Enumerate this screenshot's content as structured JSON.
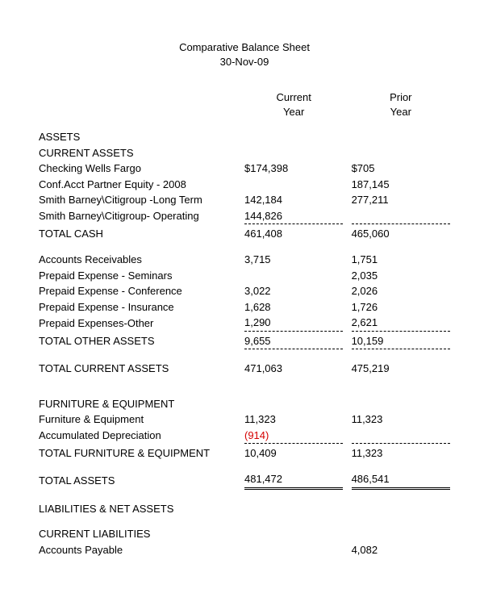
{
  "title": "Comparative Balance Sheet",
  "date": "30-Nov-09",
  "headers": {
    "current": "Current\nYear",
    "prior": "Prior\nYear"
  },
  "sections": {
    "assets": "ASSETS",
    "current_assets": "CURRENT ASSETS",
    "furn_equip": "FURNITURE & EQUIPMENT",
    "liab_net": "LIABILITIES & NET ASSETS",
    "curr_liab": "CURRENT LIABILITIES"
  },
  "rows": {
    "checking": {
      "label": "Checking Wells Fargo",
      "cur": "$174,398",
      "pri": "$705"
    },
    "conf_acct": {
      "label": "Conf.Acct Partner Equity - 2008",
      "cur": "",
      "pri": "187,145"
    },
    "sb_long": {
      "label": "Smith Barney\\Citigroup -Long Term",
      "cur": "142,184",
      "pri": "277,211"
    },
    "sb_oper": {
      "label": "Smith Barney\\Citigroup- Operating",
      "cur": "144,826",
      "pri": ""
    },
    "total_cash": {
      "label": "TOTAL CASH",
      "cur": "461,408",
      "pri": "465,060"
    },
    "ar": {
      "label": "Accounts Receivables",
      "cur": "3,715",
      "pri": "1,751"
    },
    "pp_sem": {
      "label": "Prepaid Expense - Seminars",
      "cur": "",
      "pri": "2,035"
    },
    "pp_conf": {
      "label": "Prepaid Expense - Conference",
      "cur": "3,022",
      "pri": "2,026"
    },
    "pp_ins": {
      "label": "Prepaid Expense - Insurance",
      "cur": "1,628",
      "pri": "1,726"
    },
    "pp_oth": {
      "label": "Prepaid Expenses-Other",
      "cur": "1,290",
      "pri": "2,621"
    },
    "tot_oth": {
      "label": "TOTAL OTHER ASSETS",
      "cur": "9,655",
      "pri": "10,159"
    },
    "tot_cur": {
      "label": "TOTAL CURRENT ASSETS",
      "cur": "471,063",
      "pri": "475,219"
    },
    "fe": {
      "label": "Furniture & Equipment",
      "cur": "11,323",
      "pri": "11,323"
    },
    "accdep": {
      "label": "Accumulated Depreciation",
      "cur": "(914)",
      "pri": ""
    },
    "tot_fe": {
      "label": "TOTAL FURNITURE & EQUIPMENT",
      "cur": "10,409",
      "pri": "11,323"
    },
    "tot_assets": {
      "label": "TOTAL ASSETS",
      "cur": "481,472",
      "pri": "486,541"
    },
    "ap": {
      "label": "Accounts Payable",
      "cur": "",
      "pri": "4,082"
    }
  },
  "colors": {
    "negative": "#d40000",
    "text": "#000000",
    "bg": "#ffffff"
  }
}
